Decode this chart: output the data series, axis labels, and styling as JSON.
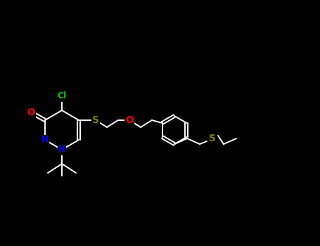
{
  "bg_color": "#000000",
  "bond_color": "#ffffff",
  "atom_colors": {
    "Cl": "#00cc00",
    "O": "#ff0000",
    "S": "#808000",
    "N": "#0000ee",
    "C": "#ffffff"
  },
  "figsize": [
    4.55,
    3.5
  ],
  "dpi": 100,
  "lw": 1.4,
  "fontsize": 9
}
